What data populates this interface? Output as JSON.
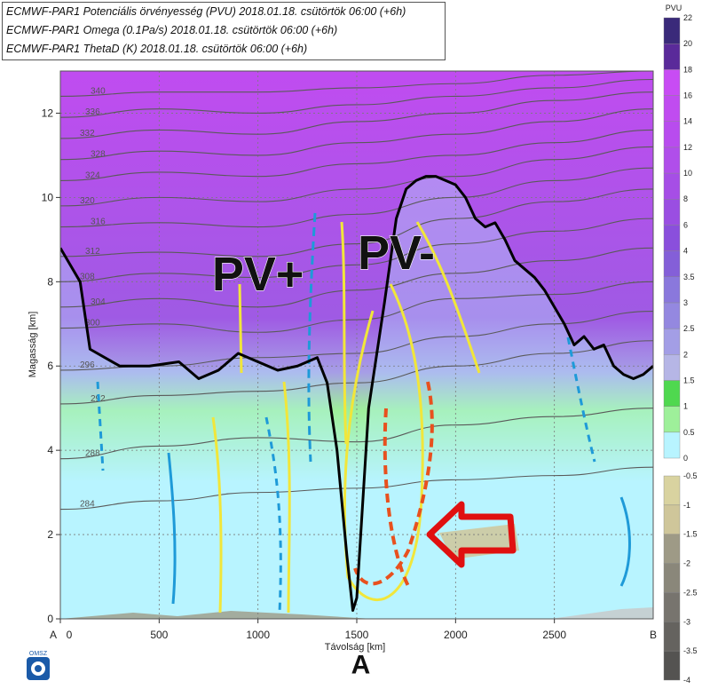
{
  "legend": {
    "line1": "ECMWF-PAR1 Potenciális örvényesség (PVU) 2018.01.18. csütörtök 06:00 (+6h)",
    "line2": "ECMWF-PAR1 Omega (0.1Pa/s) 2018.01.18. csütörtök 06:00 (+6h)",
    "line3": "ECMWF-PAR1 ThetaD (K) 2018.01.18. csütörtök 06:00 (+6h)"
  },
  "logo_text": "OMSZ",
  "chart_data": {
    "type": "cross-section",
    "xlabel": "Távolság [km]",
    "ylabel": "Magasság [km]",
    "xlim": [
      0,
      3000
    ],
    "ylim": [
      0,
      13
    ],
    "x_ticks": [
      0,
      500,
      1000,
      1500,
      2000,
      2500
    ],
    "x_tick_labels": [
      "0",
      "500",
      "1000",
      "1500",
      "2000",
      "2500"
    ],
    "x_end_labels": {
      "start": "A",
      "end": "B"
    },
    "y_ticks": [
      0,
      2,
      4,
      6,
      8,
      10,
      12
    ],
    "grid": true,
    "colorbar_pv": {
      "unit": "PVU",
      "levels": [
        "0",
        "0.5",
        "1",
        "1.5",
        "2",
        "2.5",
        "3",
        "3.5",
        "4",
        "6",
        "8",
        "10",
        "12",
        "14",
        "16",
        "18",
        "20",
        "22"
      ],
      "colors": [
        "#b8f4ff",
        "#9ef09a",
        "#4fd84f",
        "#b6b6e6",
        "#a39ee6",
        "#9488e0",
        "#8a78dc",
        "#845fd8",
        "#8a4fdc",
        "#9a4ee2",
        "#a64ee6",
        "#b04eea",
        "#b84cee",
        "#c04cf0",
        "#c84cf4",
        "#5a2a9a",
        "#3a2a7a"
      ]
    },
    "colorbar_omega": {
      "levels": [
        "-0.5",
        "-1",
        "-1.5",
        "-2",
        "-2.5",
        "-3",
        "-3.5",
        "-4"
      ],
      "colors": [
        "#d9d3a0",
        "#cfc69a",
        "#9e9a86",
        "#8a877a",
        "#77746e",
        "#65635f",
        "#545351"
      ]
    },
    "theta_contours": [
      {
        "label": "284",
        "y": [
          2.6,
          2.8,
          3.0,
          3.1,
          3.3,
          3.4,
          3.6
        ]
      },
      {
        "label": "288",
        "y": [
          3.8,
          4.1,
          4.3,
          4.2,
          4.6,
          4.8,
          5.0
        ]
      },
      {
        "label": "292",
        "y": [
          5.1,
          5.3,
          5.4,
          5.6,
          6.0,
          6.3,
          6.6
        ]
      },
      {
        "label": "296",
        "y": [
          5.9,
          6.0,
          6.2,
          6.3,
          6.7,
          7.0,
          7.3
        ]
      },
      {
        "label": "300",
        "y": [
          6.9,
          7.0,
          6.8,
          7.1,
          7.6,
          7.7,
          8.0
        ]
      },
      {
        "label": "304",
        "y": [
          7.4,
          7.6,
          7.4,
          7.8,
          8.2,
          8.5,
          8.8
        ]
      },
      {
        "label": "308",
        "y": [
          8.0,
          8.2,
          8.1,
          8.4,
          8.9,
          9.2,
          9.5
        ]
      },
      {
        "label": "312",
        "y": [
          8.6,
          8.7,
          8.6,
          8.9,
          9.5,
          9.9,
          10.2
        ]
      },
      {
        "label": "316",
        "y": [
          9.3,
          9.4,
          9.3,
          9.6,
          10.0,
          10.4,
          10.7
        ]
      },
      {
        "label": "320",
        "y": [
          9.8,
          10.0,
          9.9,
          10.2,
          10.5,
          10.9,
          11.2
        ]
      },
      {
        "label": "324",
        "y": [
          10.4,
          10.6,
          10.5,
          10.8,
          11.0,
          11.3,
          11.6
        ]
      },
      {
        "label": "328",
        "y": [
          10.9,
          11.1,
          11.0,
          11.3,
          11.5,
          11.8,
          12.1
        ]
      },
      {
        "label": "332",
        "y": [
          11.4,
          11.6,
          11.5,
          11.8,
          12.0,
          12.3,
          12.5
        ]
      },
      {
        "label": "336",
        "y": [
          11.9,
          12.1,
          12.0,
          12.2,
          12.4,
          12.6,
          12.8
        ]
      },
      {
        "label": "340",
        "y": [
          12.4,
          12.5,
          12.5,
          12.6,
          12.7,
          12.9,
          13.0
        ]
      }
    ],
    "theta_contour_x": [
      0,
      500,
      1000,
      1500,
      2000,
      2500,
      3000
    ],
    "pv2_line": {
      "x": [
        0,
        100,
        150,
        300,
        450,
        600,
        700,
        800,
        900,
        1000,
        1100,
        1200,
        1300,
        1350,
        1400,
        1450,
        1480,
        1500,
        1520,
        1560,
        1640,
        1700,
        1750,
        1800,
        1850,
        1900,
        1950,
        2000,
        2050,
        2100,
        2150,
        2200,
        2250,
        2300,
        2350,
        2400,
        2450,
        2500,
        2550,
        2600,
        2650,
        2700,
        2750,
        2800,
        2850,
        2900,
        2950,
        3000
      ],
      "y": [
        8.8,
        8.0,
        6.4,
        6.0,
        6.0,
        6.1,
        5.7,
        5.9,
        6.3,
        6.1,
        5.9,
        6.0,
        6.2,
        5.6,
        4.0,
        1.5,
        0.2,
        0.5,
        2.0,
        5.0,
        7.5,
        9.5,
        10.2,
        10.4,
        10.5,
        10.5,
        10.4,
        10.3,
        10.0,
        9.5,
        9.3,
        9.4,
        9.0,
        8.5,
        8.3,
        8.1,
        7.8,
        7.4,
        7.0,
        6.5,
        6.7,
        6.4,
        6.5,
        6.0,
        5.8,
        5.7,
        5.8,
        6.0
      ]
    },
    "annotations": [
      {
        "text": "PV+",
        "x": 1000,
        "y": 7.8
      },
      {
        "text": "PV-",
        "x": 1700,
        "y": 8.3
      },
      {
        "text": "A",
        "x": 1520,
        "y": -1.3
      }
    ]
  }
}
